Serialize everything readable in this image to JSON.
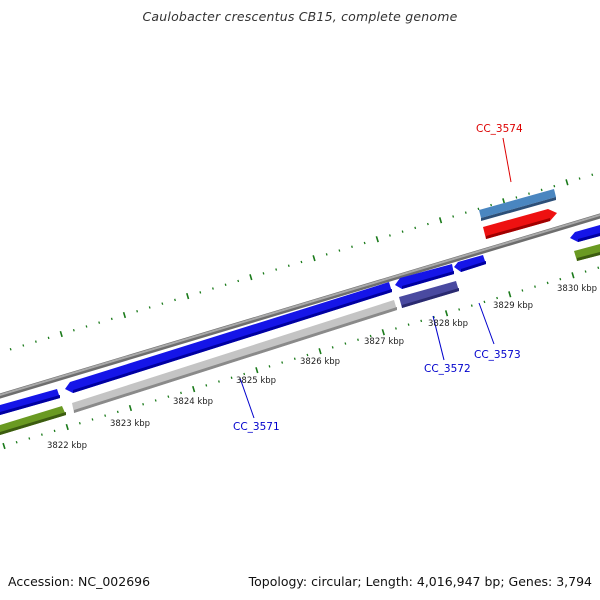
{
  "title": "Caulobacter crescentus CB15, complete genome",
  "footer": {
    "accession": "Accession: NC_002696",
    "summary": "Topology: circular; Length: 4,016,947 bp; Genes: 3,794"
  },
  "scale_labels": [
    "3822 kbp",
    "3823 kbp",
    "3824 kbp",
    "3825 kbp",
    "3826 kbp",
    "3827 kbp",
    "3828 kbp",
    "3829 kbp",
    "3830 kbp"
  ],
  "gene_labels": [
    {
      "text": "CC_3574",
      "color": "#dd0000"
    },
    {
      "text": "CC_3573",
      "color": "#0000cc"
    },
    {
      "text": "CC_3572",
      "color": "#0000cc"
    },
    {
      "text": "CC_3571",
      "color": "#0000cc"
    }
  ],
  "colors": {
    "backbone": "#8a8a8a",
    "tick": "#1a7a1a",
    "cds_blue": "#1515e8",
    "rna_green": "#6a9a22",
    "gray_feature": "#c4c4c4",
    "steel_feature": "#4a86c0",
    "red_feature": "#ee1111",
    "slate_feature": "#4a4aa0"
  }
}
